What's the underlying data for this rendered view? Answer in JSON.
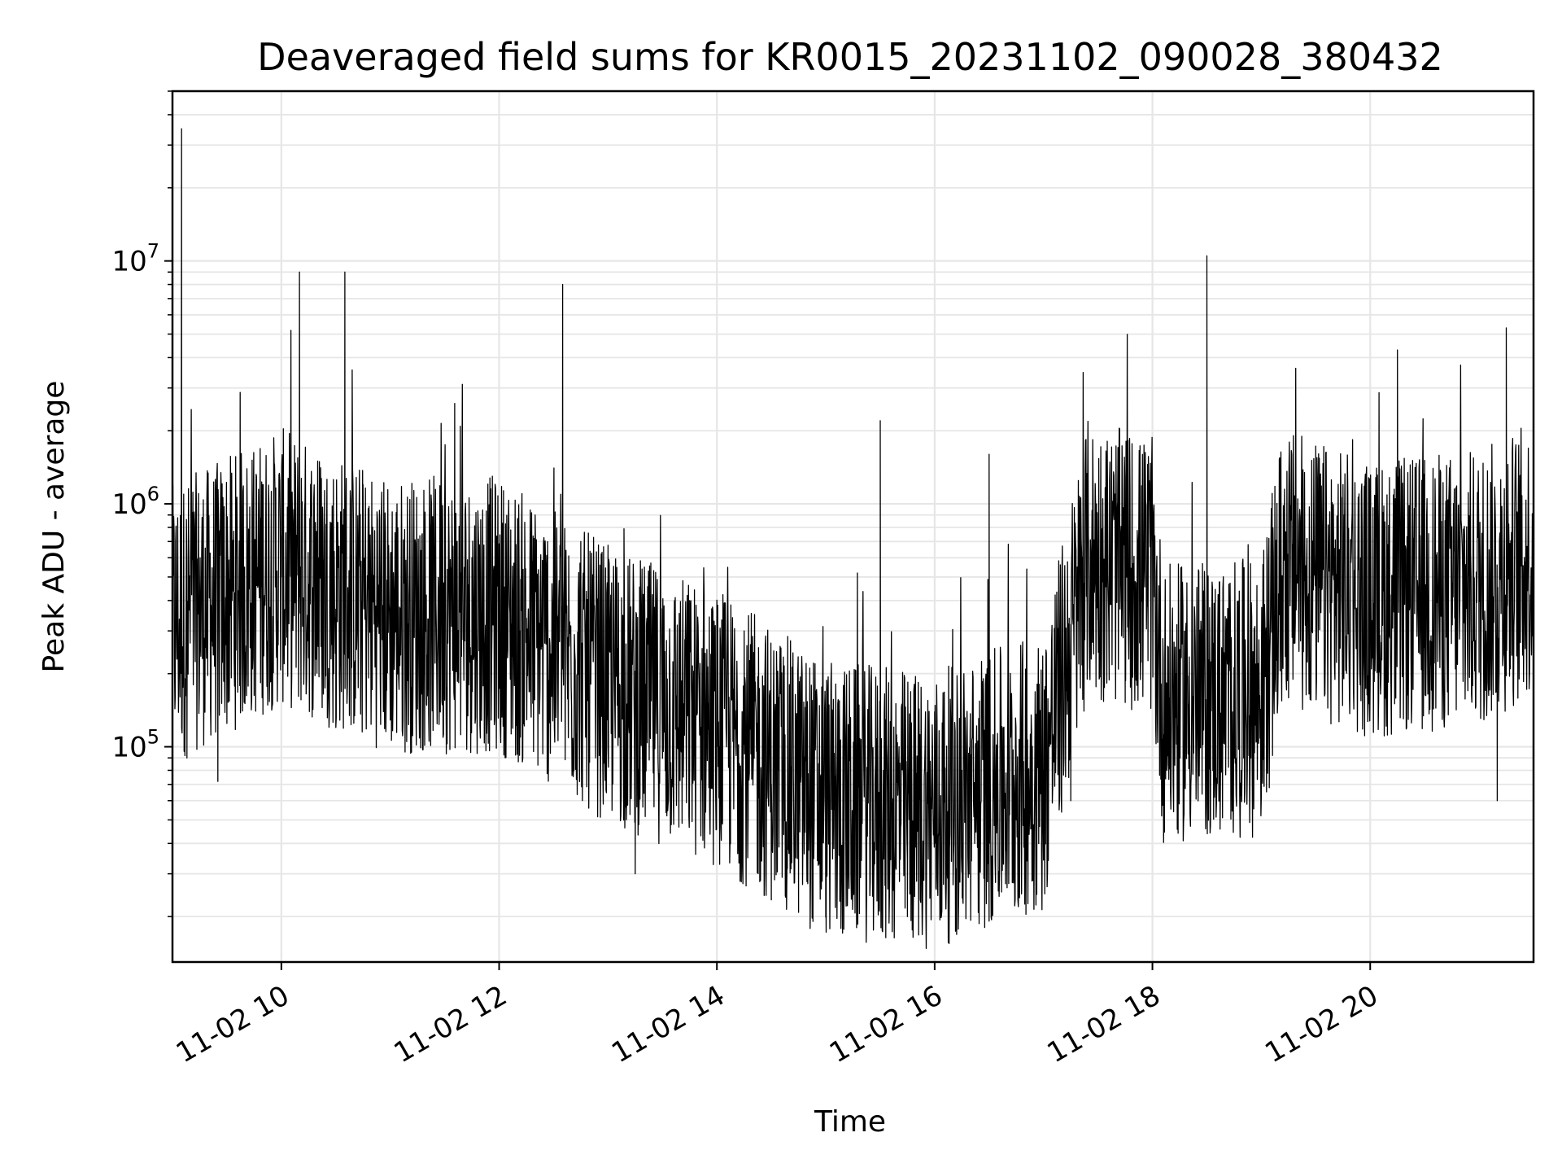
{
  "chart_data": {
    "type": "line",
    "title": "Deaveraged field sums for KR0015_20231102_090028_380432",
    "xlabel": "Time",
    "ylabel": "Peak ADU - average",
    "xscale": "time",
    "yscale": "log",
    "xlim": [
      "2023-11-02 09:00",
      "2023-11-02 21:30"
    ],
    "ylim": [
      13000,
      50000000
    ],
    "grid": true,
    "line_color": "#000000",
    "grid_color": "#e6e6e6",
    "x_ticks": [
      {
        "t": "2023-11-02 10:00",
        "label": "11-02 10"
      },
      {
        "t": "2023-11-02 12:00",
        "label": "11-02 12"
      },
      {
        "t": "2023-11-02 14:00",
        "label": "11-02 14"
      },
      {
        "t": "2023-11-02 16:00",
        "label": "11-02 16"
      },
      {
        "t": "2023-11-02 18:00",
        "label": "11-02 18"
      },
      {
        "t": "2023-11-02 20:00",
        "label": "11-02 20"
      }
    ],
    "y_ticks": [
      {
        "value": 100000,
        "base": "10",
        "exp": "5"
      },
      {
        "value": 1000000,
        "base": "10",
        "exp": "6"
      },
      {
        "value": 10000000,
        "base": "10",
        "exp": "7"
      }
    ],
    "series": [
      {
        "values": [
          [
            "09:00",
            300000
          ],
          [
            "09:05",
            35000000
          ],
          [
            "09:08",
            90000
          ],
          [
            "09:15",
            400000
          ],
          [
            "09:25",
            72000
          ],
          [
            "09:35",
            250000
          ],
          [
            "09:50",
            1200000
          ],
          [
            "10:00",
            500000
          ],
          [
            "10:10",
            9000000
          ],
          [
            "10:20",
            1500000
          ],
          [
            "10:30",
            120000
          ],
          [
            "10:35",
            9000000
          ],
          [
            "10:45",
            1200000
          ],
          [
            "11:00",
            300000
          ],
          [
            "11:20",
            150000
          ],
          [
            "11:30",
            1000000
          ],
          [
            "11:45",
            600000
          ],
          [
            "12:00",
            300000
          ],
          [
            "12:30",
            600000
          ],
          [
            "12:35",
            8000000
          ],
          [
            "12:45",
            700000
          ],
          [
            "13:00",
            100000
          ],
          [
            "13:15",
            30000
          ],
          [
            "13:30",
            250000
          ],
          [
            "13:45",
            400000
          ],
          [
            "14:00",
            100000
          ],
          [
            "14:15",
            300000
          ],
          [
            "14:30",
            70000
          ],
          [
            "14:45",
            50000
          ],
          [
            "15:00",
            30000
          ],
          [
            "15:15",
            25000
          ],
          [
            "15:30",
            2200000
          ],
          [
            "15:45",
            20000
          ],
          [
            "16:00",
            40000
          ],
          [
            "16:15",
            80000
          ],
          [
            "16:30",
            1600000
          ],
          [
            "16:45",
            50000
          ],
          [
            "17:00",
            80000
          ],
          [
            "17:15",
            60000
          ],
          [
            "17:30",
            400000
          ],
          [
            "17:45",
            800000
          ],
          [
            "18:00",
            1000000
          ],
          [
            "18:15",
            120000
          ],
          [
            "18:30",
            10500000
          ],
          [
            "18:45",
            100000
          ],
          [
            "19:00",
            180000
          ],
          [
            "19:15",
            800000
          ],
          [
            "19:30",
            500000
          ],
          [
            "19:45",
            1200000
          ],
          [
            "20:00",
            400000
          ],
          [
            "20:15",
            4300000
          ],
          [
            "20:30",
            300000
          ],
          [
            "20:45",
            600000
          ],
          [
            "21:00",
            400000
          ],
          [
            "21:10",
            60000
          ],
          [
            "21:15",
            5300000
          ],
          [
            "21:25",
            500000
          ],
          [
            "21:30",
            600000
          ]
        ]
      }
    ]
  }
}
